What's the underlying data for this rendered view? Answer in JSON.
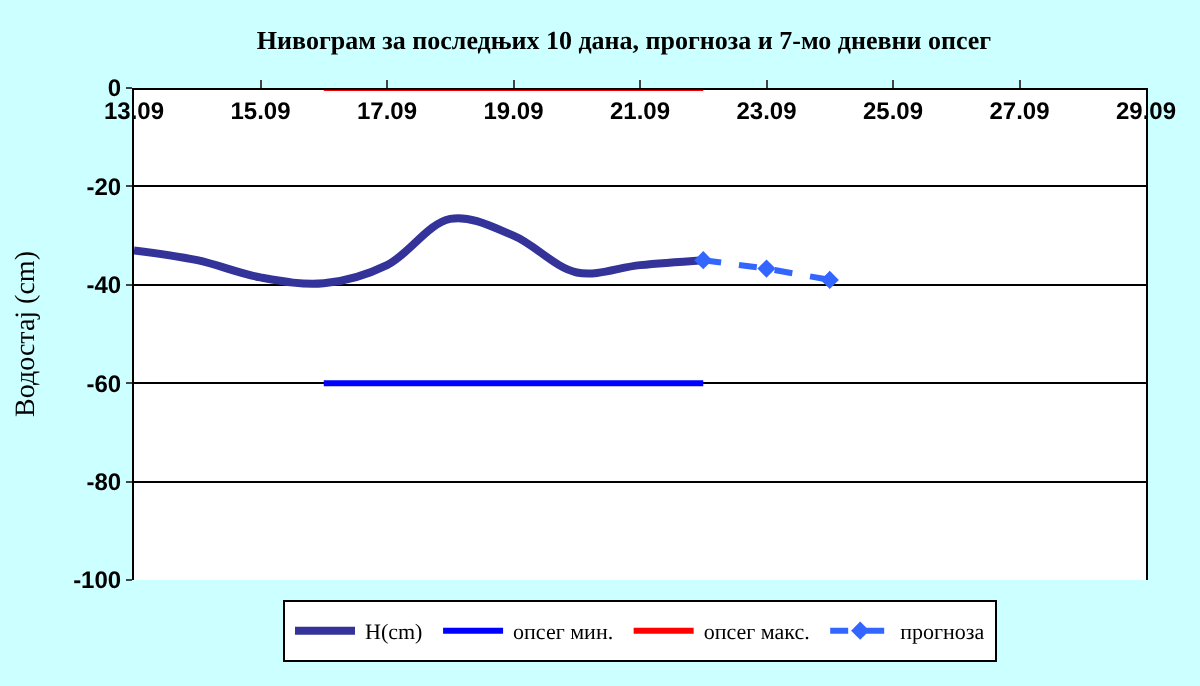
{
  "chart_data": {
    "type": "line",
    "title": "Нивограм за последњих 10 дана, прогноза и 7-мо дневни опсег",
    "ylabel": "Водостај (cm)",
    "xlim": [
      "--09-13",
      "--09-29"
    ],
    "xticks": [
      {
        "value": "--09-13",
        "label": "13.09"
      },
      {
        "value": "--09-15",
        "label": "15.09"
      },
      {
        "value": "--09-17",
        "label": "17.09"
      },
      {
        "value": "--09-19",
        "label": "19.09"
      },
      {
        "value": "--09-21",
        "label": "21.09"
      },
      {
        "value": "--09-23",
        "label": "23.09"
      },
      {
        "value": "--09-25",
        "label": "25.09"
      },
      {
        "value": "--09-27",
        "label": "27.09"
      },
      {
        "value": "--09-29",
        "label": "29.09"
      }
    ],
    "ylim": [
      -100,
      0
    ],
    "yticks": [
      -100,
      -80,
      -60,
      -40,
      -20,
      0
    ],
    "grid": "y",
    "legend": "bottom",
    "series": [
      {
        "name": "H(cm)",
        "color": "#333399",
        "x": [
          "--09-13",
          "--09-14",
          "--09-15",
          "--09-16",
          "--09-17",
          "--09-18",
          "--09-19",
          "--09-20",
          "--09-21",
          "--09-22"
        ],
        "values": [
          -33,
          -35,
          -38.5,
          -39.7,
          -36,
          -26.6,
          -30,
          -37.5,
          -36,
          -35
        ]
      },
      {
        "name": "опсег мин.",
        "color": "#0000ff",
        "x": [
          "--09-16",
          "--09-22"
        ],
        "values": [
          -60,
          -60
        ]
      },
      {
        "name": "опсег макс.",
        "color": "#ff0000",
        "x": [
          "--09-16",
          "--09-22"
        ],
        "values": [
          0,
          0
        ]
      },
      {
        "name": "прогноза",
        "color": "#3366ff",
        "marker": "diamond",
        "line_style": "dashed",
        "x": [
          "--09-22",
          "--09-23",
          "--09-24"
        ],
        "values": [
          -35,
          -36.7,
          -39
        ]
      }
    ]
  }
}
